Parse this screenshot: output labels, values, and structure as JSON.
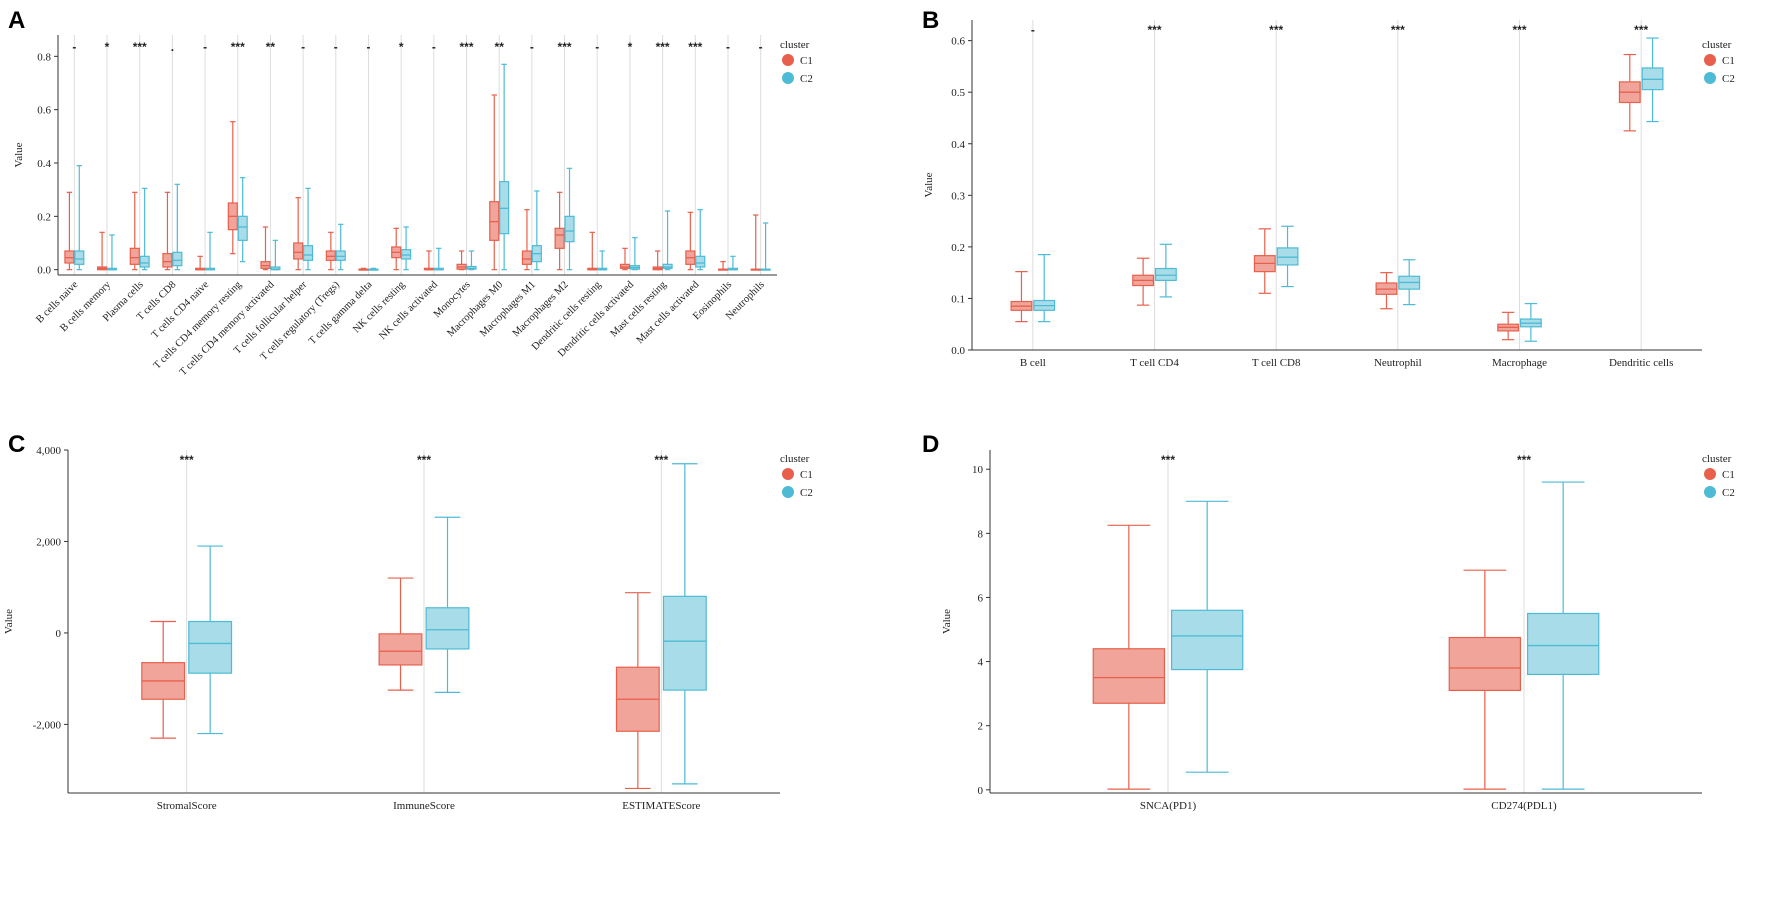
{
  "colors": {
    "c1_fill": "#F0A49A",
    "c1_line": "#E8604C",
    "c2_fill": "#A8DCE8",
    "c2_line": "#4DBBD5",
    "axis": "#333333",
    "grid": "#DDDDDD"
  },
  "chart_data": [
    {
      "panel": "A",
      "type": "box",
      "xlabel": "",
      "ylabel": "Value",
      "ylim": [
        -0.02,
        0.88
      ],
      "yticks": [
        "0.0",
        "0.2",
        "0.4",
        "0.6",
        "0.8"
      ],
      "ytick_values": [
        0,
        0.2,
        0.4,
        0.6,
        0.8
      ],
      "legend": {
        "title": "cluster",
        "items": [
          "C1",
          "C2"
        ],
        "position": "top-right"
      },
      "categories": [
        "B cells naive",
        "B cells memory",
        "Plasma cells",
        "T cells CD8",
        "T cells CD4 naive",
        "T cells CD4 memory resting",
        "T cells CD4 memory activated",
        "T cells follicular helper",
        "T cells regulatory (Tregs)",
        "T cells gamma delta",
        "NK cells resting",
        "NK cells activated",
        "Monocytes",
        "Macrophages M0",
        "Macrophages M1",
        "Macrophages M2",
        "Dendritic cells resting",
        "Dendritic cells activated",
        "Mast cells resting",
        "Mast cells activated",
        "Eosinophils",
        "Neutrophils"
      ],
      "significance": [
        "-",
        "*",
        "***",
        ".",
        "-",
        "***",
        "**",
        "-",
        "-",
        "-",
        "*",
        "-",
        "***",
        "**",
        "-",
        "***",
        "-",
        "*",
        "***",
        "***",
        "-",
        "-"
      ],
      "series": [
        {
          "name": "C1",
          "boxes": [
            [
              0.0,
              0.025,
              0.045,
              0.07,
              0.29
            ],
            [
              0.0,
              0.0,
              0.005,
              0.01,
              0.14
            ],
            [
              0.0,
              0.02,
              0.045,
              0.08,
              0.29
            ],
            [
              0.0,
              0.01,
              0.03,
              0.06,
              0.29
            ],
            [
              0.0,
              0.0,
              0.0,
              0.005,
              0.05
            ],
            [
              0.06,
              0.15,
              0.2,
              0.25,
              0.555
            ],
            [
              0.0,
              0.005,
              0.015,
              0.03,
              0.16
            ],
            [
              0.0,
              0.04,
              0.065,
              0.1,
              0.27
            ],
            [
              0.0,
              0.035,
              0.05,
              0.07,
              0.14
            ],
            [
              0.0,
              0.0,
              0.0,
              0.002,
              0.005
            ],
            [
              0.0,
              0.045,
              0.065,
              0.085,
              0.155
            ],
            [
              0.0,
              0.0,
              0.0,
              0.005,
              0.07
            ],
            [
              0.0,
              0.002,
              0.01,
              0.02,
              0.07
            ],
            [
              0.0,
              0.11,
              0.18,
              0.255,
              0.655
            ],
            [
              0.0,
              0.02,
              0.04,
              0.07,
              0.225
            ],
            [
              0.0,
              0.08,
              0.13,
              0.155,
              0.29
            ],
            [
              0.0,
              0.0,
              0.0,
              0.005,
              0.14
            ],
            [
              0.0,
              0.005,
              0.01,
              0.02,
              0.08
            ],
            [
              0.0,
              0.0,
              0.005,
              0.01,
              0.07
            ],
            [
              0.0,
              0.02,
              0.045,
              0.07,
              0.215
            ],
            [
              0.0,
              0.0,
              0.0,
              0.002,
              0.03
            ],
            [
              0.0,
              0.0,
              0.0,
              0.002,
              0.205
            ]
          ]
        },
        {
          "name": "C2",
          "boxes": [
            [
              0.0,
              0.02,
              0.04,
              0.07,
              0.39
            ],
            [
              0.0,
              0.0,
              0.0,
              0.005,
              0.13
            ],
            [
              0.0,
              0.01,
              0.025,
              0.05,
              0.305
            ],
            [
              0.0,
              0.015,
              0.035,
              0.065,
              0.32
            ],
            [
              0.0,
              0.0,
              0.0,
              0.005,
              0.14
            ],
            [
              0.03,
              0.11,
              0.16,
              0.2,
              0.345
            ],
            [
              0.0,
              0.0,
              0.002,
              0.01,
              0.11
            ],
            [
              0.0,
              0.035,
              0.055,
              0.09,
              0.305
            ],
            [
              0.0,
              0.035,
              0.05,
              0.07,
              0.17
            ],
            [
              0.0,
              0.0,
              0.0,
              0.002,
              0.005
            ],
            [
              0.0,
              0.04,
              0.055,
              0.075,
              0.16
            ],
            [
              0.0,
              0.0,
              0.0,
              0.005,
              0.08
            ],
            [
              0.0,
              0.002,
              0.005,
              0.012,
              0.07
            ],
            [
              0.0,
              0.135,
              0.23,
              0.33,
              0.77
            ],
            [
              0.0,
              0.03,
              0.06,
              0.09,
              0.295
            ],
            [
              0.0,
              0.105,
              0.145,
              0.2,
              0.38
            ],
            [
              0.0,
              0.0,
              0.0,
              0.005,
              0.07
            ],
            [
              0.0,
              0.002,
              0.008,
              0.015,
              0.12
            ],
            [
              0.0,
              0.005,
              0.01,
              0.02,
              0.22
            ],
            [
              0.0,
              0.01,
              0.025,
              0.05,
              0.225
            ],
            [
              0.0,
              0.0,
              0.0,
              0.005,
              0.05
            ],
            [
              0.0,
              0.0,
              0.0,
              0.002,
              0.175
            ]
          ]
        }
      ]
    },
    {
      "panel": "B",
      "type": "box",
      "xlabel": "",
      "ylabel": "Value",
      "ylim": [
        0,
        0.64
      ],
      "yticks": [
        "0.0",
        "0.1",
        "0.2",
        "0.3",
        "0.4",
        "0.5",
        "0.6"
      ],
      "ytick_values": [
        0,
        0.1,
        0.2,
        0.3,
        0.4,
        0.5,
        0.6
      ],
      "legend": {
        "title": "cluster",
        "items": [
          "C1",
          "C2"
        ],
        "position": "top-right"
      },
      "categories": [
        "B cell",
        "T cell CD4",
        "T cell CD8",
        "Neutrophil",
        "Macrophage",
        "Dendritic cells"
      ],
      "significance": [
        "-",
        "***",
        "***",
        "***",
        "***",
        "***"
      ],
      "series": [
        {
          "name": "C1",
          "boxes": [
            [
              0.055,
              0.077,
              0.085,
              0.094,
              0.152
            ],
            [
              0.087,
              0.125,
              0.135,
              0.145,
              0.178
            ],
            [
              0.11,
              0.152,
              0.168,
              0.183,
              0.235
            ],
            [
              0.08,
              0.108,
              0.118,
              0.13,
              0.15
            ],
            [
              0.02,
              0.037,
              0.044,
              0.05,
              0.073
            ],
            [
              0.425,
              0.48,
              0.5,
              0.52,
              0.573
            ]
          ]
        },
        {
          "name": "C2",
          "boxes": [
            [
              0.055,
              0.077,
              0.086,
              0.096,
              0.185
            ],
            [
              0.103,
              0.135,
              0.145,
              0.158,
              0.205
            ],
            [
              0.123,
              0.165,
              0.18,
              0.198,
              0.24
            ],
            [
              0.088,
              0.118,
              0.131,
              0.143,
              0.175
            ],
            [
              0.017,
              0.045,
              0.052,
              0.06,
              0.09
            ],
            [
              0.443,
              0.505,
              0.525,
              0.547,
              0.605
            ]
          ]
        }
      ]
    },
    {
      "panel": "C",
      "type": "box",
      "xlabel": "",
      "ylabel": "Value",
      "ylim": [
        -3500,
        4000
      ],
      "yticks": [
        "-2,000",
        "0",
        "2,000",
        "4,000"
      ],
      "ytick_values": [
        -2000,
        0,
        2000,
        4000
      ],
      "legend": {
        "title": "cluster",
        "items": [
          "C1",
          "C2"
        ],
        "position": "top-right"
      },
      "categories": [
        "StromalScore",
        "ImmuneScore",
        "ESTIMATEScore"
      ],
      "significance": [
        "***",
        "***",
        "***"
      ],
      "series": [
        {
          "name": "C1",
          "boxes": [
            [
              -2300,
              -1450,
              -1050,
              -650,
              250
            ],
            [
              -1250,
              -700,
              -400,
              -20,
              1200
            ],
            [
              -3400,
              -2150,
              -1450,
              -750,
              880
            ]
          ]
        },
        {
          "name": "C2",
          "boxes": [
            [
              -2200,
              -880,
              -230,
              250,
              1900
            ],
            [
              -1300,
              -350,
              70,
              550,
              2530
            ],
            [
              -3300,
              -1250,
              -180,
              800,
              3700
            ]
          ]
        }
      ]
    },
    {
      "panel": "D",
      "type": "box",
      "xlabel": "",
      "ylabel": "Value",
      "ylim": [
        -0.1,
        10.6
      ],
      "yticks": [
        "0",
        "2",
        "4",
        "6",
        "8",
        "10"
      ],
      "ytick_values": [
        0,
        2,
        4,
        6,
        8,
        10
      ],
      "legend": {
        "title": "cluster",
        "items": [
          "C1",
          "C2"
        ],
        "position": "top-right"
      },
      "categories": [
        "SNCA(PD1)",
        "CD274(PDL1)"
      ],
      "significance": [
        "***",
        "***"
      ],
      "series": [
        {
          "name": "C1",
          "boxes": [
            [
              0.02,
              2.7,
              3.5,
              4.4,
              8.25
            ],
            [
              0.02,
              3.1,
              3.8,
              4.75,
              6.85
            ]
          ]
        },
        {
          "name": "C2",
          "boxes": [
            [
              0.55,
              3.75,
              4.8,
              5.6,
              9.0
            ],
            [
              0.02,
              3.6,
              4.5,
              5.5,
              9.6
            ]
          ]
        }
      ]
    }
  ]
}
